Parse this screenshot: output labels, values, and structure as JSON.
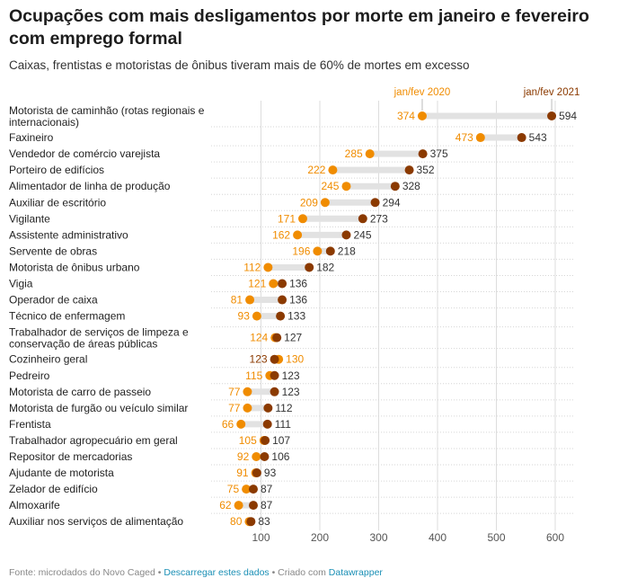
{
  "header": {
    "title": "Ocupações com mais desligamentos por morte em janeiro e fevereiro com emprego formal",
    "subtitle": "Caixas, frentistas e motoristas de ônibus tiveram mais de 60% de mortes em excesso"
  },
  "footer": {
    "source": "Fonte: microdados do Novo Caged",
    "sep1": " • ",
    "download_link": "Descarregar estes dados",
    "sep2": " • Criado com ",
    "tool_link": "Datawrapper"
  },
  "colors": {
    "series_2020": "#f08c00",
    "series_2021": "#8b3a00",
    "range_bar": "#e2e2e2",
    "gridline": "#dddddd"
  },
  "chart_data": {
    "type": "dot-range",
    "series": [
      {
        "name": "jan/fev 2020",
        "key": "v2020"
      },
      {
        "name": "jan/fev 2021",
        "key": "v2021"
      }
    ],
    "xlim": [
      0,
      650
    ],
    "xticks": [
      100,
      200,
      300,
      400,
      500,
      600
    ],
    "rows": [
      {
        "label": [
          "Motorista de caminhão (rotas regionais e",
          "internacionais)"
        ],
        "v2020": 374,
        "v2021": 594
      },
      {
        "label": [
          "Faxineiro"
        ],
        "v2020": 473,
        "v2021": 543
      },
      {
        "label": [
          "Vendedor de comércio varejista"
        ],
        "v2020": 285,
        "v2021": 375
      },
      {
        "label": [
          "Porteiro de edifícios"
        ],
        "v2020": 222,
        "v2021": 352
      },
      {
        "label": [
          "Alimentador de linha de produção"
        ],
        "v2020": 245,
        "v2021": 328
      },
      {
        "label": [
          "Auxiliar de escritório"
        ],
        "v2020": 209,
        "v2021": 294
      },
      {
        "label": [
          "Vigilante"
        ],
        "v2020": 171,
        "v2021": 273
      },
      {
        "label": [
          "Assistente administrativo"
        ],
        "v2020": 162,
        "v2021": 245
      },
      {
        "label": [
          "Servente de obras"
        ],
        "v2020": 196,
        "v2021": 218
      },
      {
        "label": [
          "Motorista de ônibus urbano"
        ],
        "v2020": 112,
        "v2021": 182
      },
      {
        "label": [
          "Vigia"
        ],
        "v2020": 121,
        "v2021": 136
      },
      {
        "label": [
          "Operador de caixa"
        ],
        "v2020": 81,
        "v2021": 136
      },
      {
        "label": [
          "Técnico de enfermagem"
        ],
        "v2020": 93,
        "v2021": 133
      },
      {
        "label": [
          "Trabalhador de serviços de limpeza e",
          "conservação de áreas públicas"
        ],
        "v2020": 124,
        "v2021": 127
      },
      {
        "label": [
          "Cozinheiro geral"
        ],
        "v2020": 130,
        "v2021": 123
      },
      {
        "label": [
          "Pedreiro"
        ],
        "v2020": 115,
        "v2021": 123
      },
      {
        "label": [
          "Motorista de carro de passeio"
        ],
        "v2020": 77,
        "v2021": 123
      },
      {
        "label": [
          "Motorista de furgão ou veículo similar"
        ],
        "v2020": 77,
        "v2021": 112
      },
      {
        "label": [
          "Frentista"
        ],
        "v2020": 66,
        "v2021": 111
      },
      {
        "label": [
          "Trabalhador agropecuário em geral"
        ],
        "v2020": 105,
        "v2021": 107
      },
      {
        "label": [
          "Repositor de mercadorias"
        ],
        "v2020": 92,
        "v2021": 106
      },
      {
        "label": [
          "Ajudante de motorista"
        ],
        "v2020": 91,
        "v2021": 93
      },
      {
        "label": [
          "Zelador de edifício"
        ],
        "v2020": 75,
        "v2021": 87
      },
      {
        "label": [
          "Almoxarife"
        ],
        "v2020": 62,
        "v2021": 87
      },
      {
        "label": [
          "Auxiliar nos serviços de alimentação"
        ],
        "v2020": 80,
        "v2021": 83
      }
    ]
  }
}
